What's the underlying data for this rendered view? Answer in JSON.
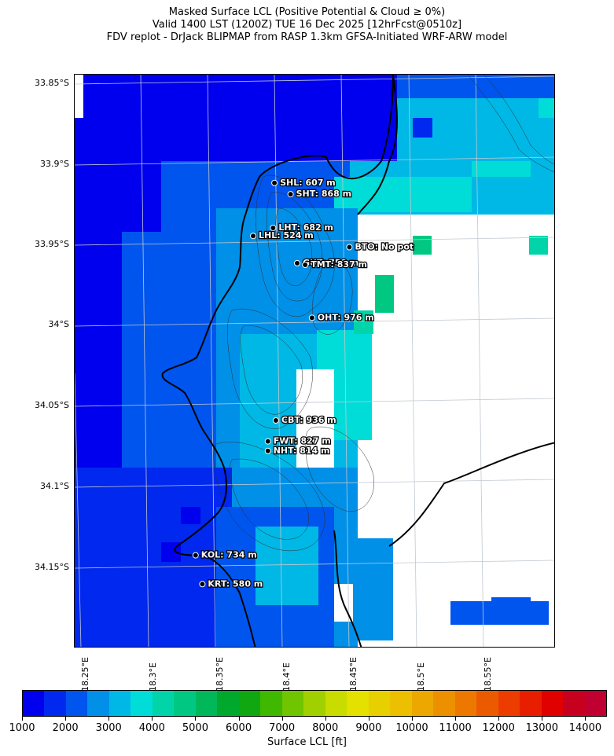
{
  "title_lines": [
    "Masked Surface LCL (Positive Potential & Cloud ≥ 0%)",
    "Valid 1400 LST (1200Z) TUE 16 Dec 2025 [12hrFcst@0510z]",
    "FDV replot - DrJack BLIPMAP from RASP 1.3km GFSA-Initiated WRF-ARW model"
  ],
  "axes": {
    "lat_ticks": [
      "33.85°S",
      "33.9°S",
      "33.95°S",
      "34°S",
      "34.05°S",
      "34.1°S",
      "34.15°S"
    ],
    "lon_ticks": [
      "18.25°E",
      "18.3°E",
      "18.35°E",
      "18.4°E",
      "18.45°E",
      "18.5°E",
      "18.55°E"
    ]
  },
  "stations": [
    {
      "code": "SHL",
      "label": "SHL: 607 m",
      "lon": 18.392,
      "lat": -33.905
    },
    {
      "code": "SHT",
      "label": "SHT: 868 m",
      "lon": 18.404,
      "lat": -33.912
    },
    {
      "code": "LHT",
      "label": "LHT: 682 m",
      "lon": 18.391,
      "lat": -33.933
    },
    {
      "code": "LHL",
      "label": "LHL: 524 m",
      "lon": 18.376,
      "lat": -33.938
    },
    {
      "code": "BTO",
      "label": "BTO: No pot",
      "lon": 18.448,
      "lat": -33.945
    },
    {
      "code": "GUT",
      "label": "GUT: 758 m",
      "lon": 18.409,
      "lat": -33.955
    },
    {
      "code": "TMT",
      "label": "TMT: 837 m",
      "lon": 18.415,
      "lat": -33.956
    },
    {
      "code": "OHT",
      "label": "OHT: 976 m",
      "lon": 18.42,
      "lat": -33.989
    },
    {
      "code": "CBT",
      "label": "CBT: 936 m",
      "lon": 18.393,
      "lat": -34.053
    },
    {
      "code": "FWT",
      "label": "FWT: 827 m",
      "lon": 18.387,
      "lat": -34.066
    },
    {
      "code": "NHT",
      "label": "NHT: 814 m",
      "lon": 18.387,
      "lat": -34.072
    },
    {
      "code": "KOL",
      "label": "KOL: 734 m",
      "lon": 18.333,
      "lat": -34.137
    },
    {
      "code": "KRT",
      "label": "KRT: 580 m",
      "lon": 18.338,
      "lat": -34.155
    }
  ],
  "colorbar": {
    "label": "Surface LCL [ft]",
    "min": 1000,
    "max": 14500,
    "step": 500,
    "tick_labels": [
      "1000",
      "2000",
      "3000",
      "4000",
      "5000",
      "6000",
      "7000",
      "8000",
      "9000",
      "10000",
      "11000",
      "12000",
      "13000",
      "14000"
    ],
    "colors": [
      "#0000ee",
      "#0028ee",
      "#0055ee",
      "#0090e8",
      "#00b8e6",
      "#00dcd8",
      "#00d4a8",
      "#00c882",
      "#00b85a",
      "#00a82c",
      "#10a810",
      "#40b800",
      "#70c400",
      "#a0d000",
      "#c8dc00",
      "#e4e000",
      "#e8d000",
      "#ecc000",
      "#eca800",
      "#ec9000",
      "#ec7800",
      "#ec5a00",
      "#ec3c00",
      "#e81e00",
      "#e00000",
      "#c80020",
      "#c00030"
    ]
  },
  "colors": {
    "coastline": "#000000",
    "contour": "#303030",
    "grid": "#c0c8d0",
    "no_data": "#ffffff"
  },
  "grid_columns": [
    "#0000ee",
    "#0028ee",
    "#0055ee",
    "#0090e8",
    "#00b8e6",
    "#00dcd8",
    "#00d4a8",
    "#00c882",
    "#00b85a"
  ]
}
